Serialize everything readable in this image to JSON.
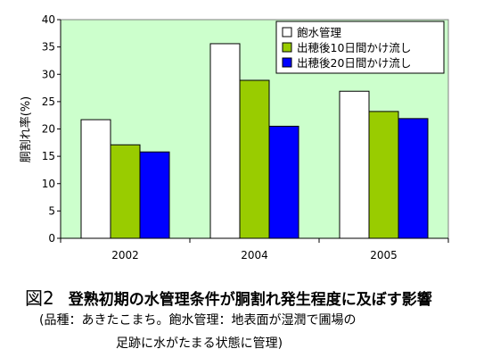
{
  "chart_data": {
    "type": "bar",
    "categories": [
      "2002",
      "2004",
      "2005"
    ],
    "series": [
      {
        "name": "飽水管理",
        "values": [
          21.7,
          35.6,
          26.9
        ],
        "color": "#ffffff"
      },
      {
        "name": "出穂後10日間かけ流し",
        "values": [
          17.1,
          28.9,
          23.2
        ],
        "color": "#99cc00"
      },
      {
        "name": "出穂後20日間かけ流し",
        "values": [
          15.8,
          20.5,
          21.9
        ],
        "color": "#0000ff"
      }
    ],
    "ylabel": "胴割れ率(%)",
    "ylim": [
      0,
      40
    ],
    "yticks": [
      0,
      5,
      10,
      15,
      20,
      25,
      30,
      35,
      40
    ],
    "plot_background": "#ccffcc",
    "legend_position": "top-right",
    "grid": false
  },
  "caption": {
    "figure_label": "図2",
    "title": "登熟初期の水管理条件が胴割れ発生程度に及ぼす影響",
    "note_line1": "(品種：あきたこまち。飽水管理：地表面が湿潤で圃場の",
    "note_line2": "足跡に水がたまる状態に管理)"
  }
}
